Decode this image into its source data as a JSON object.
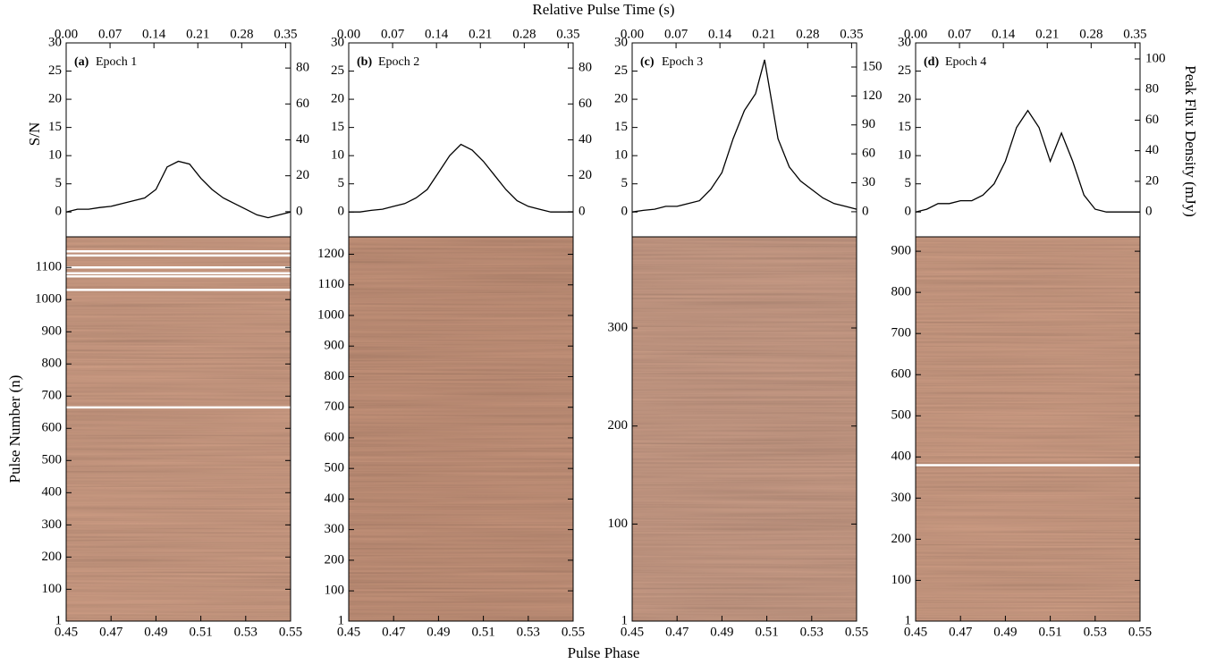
{
  "figure": {
    "top_axis_title": "Relative Pulse Time (s)",
    "bottom_axis_title": "Pulse Phase",
    "profile_axis_title": "S/N",
    "stack_axis_title": "Pulse Number (n)",
    "right_axis_title": "Peak Flux Density (mJy)"
  },
  "chart_data": [
    {
      "type": "line",
      "label": "(a)",
      "epoch": "Epoch 1",
      "color": "#000000",
      "x": [
        0.45,
        0.455,
        0.46,
        0.465,
        0.47,
        0.475,
        0.48,
        0.485,
        0.49,
        0.495,
        0.5,
        0.505,
        0.51,
        0.515,
        0.52,
        0.525,
        0.53,
        0.535,
        0.54,
        0.545,
        0.55
      ],
      "values": [
        0,
        0.5,
        0.5,
        0.8,
        1,
        1.5,
        2,
        2.5,
        4,
        8,
        9,
        8.5,
        6,
        4,
        2.5,
        1.5,
        0.5,
        -0.5,
        -1,
        -0.5,
        0
      ],
      "xlim": [
        0.45,
        0.55
      ],
      "xticks": [
        0.45,
        0.47,
        0.49,
        0.51,
        0.53,
        0.55
      ],
      "x2lim": [
        0,
        0.358
      ],
      "x2ticks": [
        {
          "value": 0,
          "label": "0.00"
        },
        0.07,
        0.14,
        0.21,
        0.28,
        0.35
      ],
      "ylim": [
        -4.4,
        30
      ],
      "yticks": [
        0,
        5,
        10,
        15,
        20,
        25,
        30
      ],
      "y2lim": [
        -14,
        94
      ],
      "y2ticks": [
        0,
        20,
        40,
        60,
        80
      ],
      "heatmap": {
        "color": "#d9a58b",
        "ylim": [
          1,
          1195
        ],
        "yticks": [
          1,
          100,
          200,
          300,
          400,
          500,
          600,
          700,
          800,
          900,
          1000,
          1100
        ],
        "blank_pulses": [
          1150,
          1137,
          1100,
          1082,
          1072,
          1030,
          665
        ]
      }
    },
    {
      "type": "line",
      "label": "(b)",
      "epoch": "Epoch 2",
      "color": "#000000",
      "x": [
        0.45,
        0.455,
        0.46,
        0.465,
        0.47,
        0.475,
        0.48,
        0.485,
        0.49,
        0.495,
        0.5,
        0.505,
        0.51,
        0.515,
        0.52,
        0.525,
        0.53,
        0.535,
        0.54,
        0.545,
        0.55
      ],
      "values": [
        0,
        0,
        0.3,
        0.5,
        1,
        1.5,
        2.5,
        4,
        7,
        10,
        12,
        11,
        9,
        6.5,
        4,
        2,
        1,
        0.5,
        0,
        0,
        0
      ],
      "xlim": [
        0.45,
        0.55
      ],
      "xticks": [
        0.45,
        0.47,
        0.49,
        0.51,
        0.53,
        0.55
      ],
      "x2lim": [
        0,
        0.358
      ],
      "x2ticks": [
        {
          "value": 0,
          "label": "0.00"
        },
        0.07,
        0.14,
        0.21,
        0.28,
        0.35
      ],
      "ylim": [
        -4.4,
        30
      ],
      "yticks": [
        0,
        5,
        10,
        15,
        20,
        25,
        30
      ],
      "y2lim": [
        -14,
        94
      ],
      "y2ticks": [
        0,
        20,
        40,
        60,
        80
      ],
      "heatmap": {
        "color": "#cf9a80",
        "ylim": [
          1,
          1257
        ],
        "yticks": [
          1,
          100,
          200,
          300,
          400,
          500,
          600,
          700,
          800,
          900,
          1000,
          1100,
          1200
        ],
        "blank_pulses": []
      }
    },
    {
      "type": "line",
      "label": "(c)",
      "epoch": "Epoch 3",
      "color": "#000000",
      "x": [
        0.45,
        0.455,
        0.46,
        0.465,
        0.47,
        0.475,
        0.48,
        0.485,
        0.49,
        0.495,
        0.5,
        0.505,
        0.509,
        0.515,
        0.52,
        0.525,
        0.53,
        0.535,
        0.54,
        0.545,
        0.55
      ],
      "values": [
        0,
        0.3,
        0.5,
        1,
        1,
        1.5,
        2,
        4,
        7,
        13,
        18,
        21,
        27,
        13,
        8,
        5.5,
        4,
        2.5,
        1.5,
        1,
        0.5
      ],
      "xlim": [
        0.45,
        0.55
      ],
      "xticks": [
        0.45,
        0.47,
        0.49,
        0.51,
        0.53,
        0.55
      ],
      "x2lim": [
        0,
        0.358
      ],
      "x2ticks": [
        {
          "value": 0,
          "label": "0.00"
        },
        0.07,
        0.14,
        0.21,
        0.28,
        0.35
      ],
      "ylim": [
        -4.4,
        30
      ],
      "yticks": [
        0,
        5,
        10,
        15,
        20,
        25,
        30
      ],
      "y2lim": [
        -26,
        175
      ],
      "y2ticks": [
        0,
        30,
        60,
        90,
        120,
        150
      ],
      "heatmap": {
        "color": "#d4a48d",
        "ylim": [
          1,
          393
        ],
        "yticks": [
          1,
          100,
          200,
          300
        ],
        "blank_pulses": []
      }
    },
    {
      "type": "line",
      "label": "(d)",
      "epoch": "Epoch 4",
      "color": "#000000",
      "x": [
        0.45,
        0.455,
        0.46,
        0.465,
        0.47,
        0.475,
        0.48,
        0.485,
        0.49,
        0.495,
        0.5,
        0.505,
        0.51,
        0.515,
        0.52,
        0.525,
        0.53,
        0.535,
        0.54,
        0.545,
        0.55
      ],
      "values": [
        0,
        0.5,
        1.5,
        1.5,
        2,
        2,
        3,
        5,
        9,
        15,
        18,
        15,
        9,
        14,
        9,
        3,
        0.5,
        0,
        0,
        0,
        0
      ],
      "xlim": [
        0.45,
        0.55
      ],
      "xticks": [
        0.45,
        0.47,
        0.49,
        0.51,
        0.53,
        0.55
      ],
      "x2lim": [
        0,
        0.358
      ],
      "x2ticks": [
        {
          "value": 0,
          "label": "0.00"
        },
        0.07,
        0.14,
        0.21,
        0.28,
        0.35
      ],
      "ylim": [
        -4.4,
        30
      ],
      "yticks": [
        0,
        5,
        10,
        15,
        20,
        25,
        30
      ],
      "y2lim": [
        -16.3,
        110.5
      ],
      "y2ticks": [
        0,
        20,
        40,
        60,
        80,
        100
      ],
      "heatmap": {
        "color": "#d9a58b",
        "ylim": [
          1,
          935
        ],
        "yticks": [
          1,
          100,
          200,
          300,
          400,
          500,
          600,
          700,
          800,
          900
        ],
        "blank_pulses": [
          380
        ]
      }
    }
  ]
}
